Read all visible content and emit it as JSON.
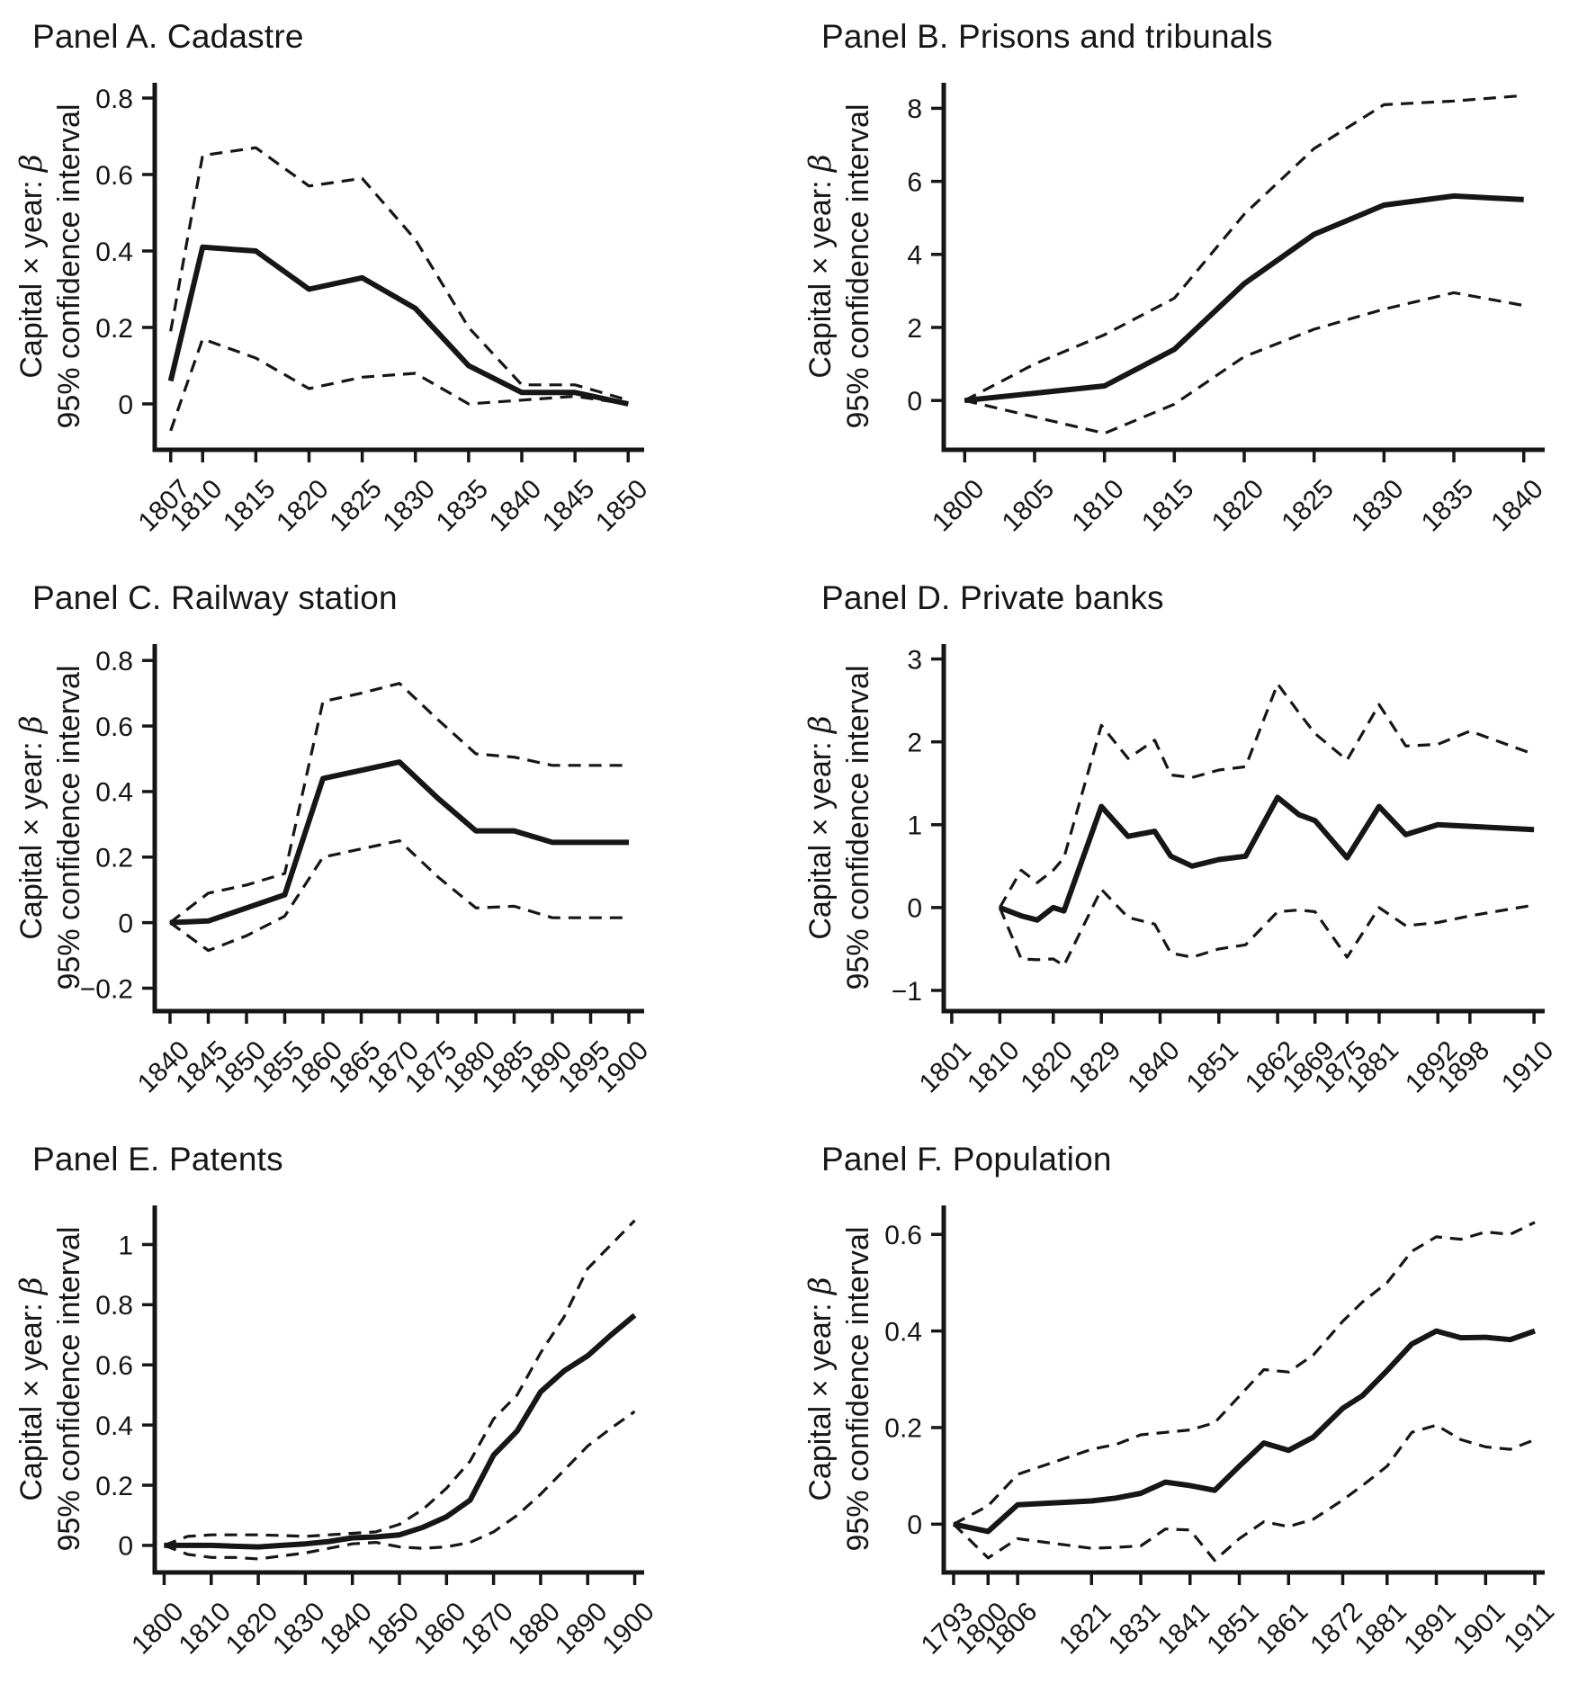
{
  "figure": {
    "background": "#ffffff",
    "line_color": "#161616",
    "n_panels": 6
  },
  "chart_data": [
    {
      "id": "panel-a",
      "type": "line",
      "title": "Panel A. Cadastre",
      "ylabel_line1": "Capital × year: β",
      "ylabel_line2": "95% confidence interval",
      "x": [
        1807,
        1810,
        1815,
        1820,
        1825,
        1830,
        1835,
        1840,
        1845,
        1850
      ],
      "series": [
        {
          "name": "beta_estimate",
          "style": "solid",
          "values": [
            0.06,
            0.41,
            0.4,
            0.3,
            0.33,
            0.25,
            0.1,
            0.03,
            0.03,
            0.0
          ]
        },
        {
          "name": "ci_upper_95",
          "style": "dashed",
          "values": [
            0.19,
            0.65,
            0.67,
            0.57,
            0.59,
            0.43,
            0.2,
            0.05,
            0.05,
            0.01
          ]
        },
        {
          "name": "ci_lower_95",
          "style": "dashed",
          "values": [
            -0.07,
            0.17,
            0.12,
            0.04,
            0.07,
            0.08,
            0.0,
            0.01,
            0.02,
            0.0
          ]
        }
      ],
      "xtick_values": [
        1807,
        1810,
        1815,
        1820,
        1825,
        1830,
        1835,
        1840,
        1845,
        1850
      ],
      "xtick_labels": [
        "1807",
        "1810",
        "1815",
        "1820",
        "1825",
        "1830",
        "1835",
        "1840",
        "1845",
        "1850"
      ],
      "ytick_values": [
        0,
        0.2,
        0.4,
        0.6,
        0.8
      ],
      "ytick_labels": [
        "0",
        "0.2",
        "0.4",
        "0.6",
        "0.8"
      ],
      "xlim": [
        1805.5,
        1851.5
      ],
      "ylim": [
        -0.12,
        0.84
      ],
      "grid": false,
      "legend": "none"
    },
    {
      "id": "panel-b",
      "type": "line",
      "title": "Panel B. Prisons and tribunals",
      "ylabel_line1": "Capital × year: β",
      "ylabel_line2": "95% confidence interval",
      "x": [
        1800,
        1805,
        1810,
        1815,
        1820,
        1825,
        1830,
        1835,
        1840
      ],
      "series": [
        {
          "name": "beta_estimate",
          "style": "solid",
          "values": [
            0,
            0.2,
            0.4,
            1.4,
            3.2,
            4.55,
            5.35,
            5.6,
            5.5
          ]
        },
        {
          "name": "ci_upper_95",
          "style": "dashed",
          "values": [
            0,
            1.0,
            1.8,
            2.8,
            5.1,
            6.9,
            8.1,
            8.2,
            8.35
          ]
        },
        {
          "name": "ci_lower_95",
          "style": "dashed",
          "values": [
            0,
            -0.45,
            -0.9,
            -0.1,
            1.2,
            1.95,
            2.5,
            2.95,
            2.6
          ]
        }
      ],
      "xtick_values": [
        1800,
        1805,
        1810,
        1815,
        1820,
        1825,
        1830,
        1835,
        1840
      ],
      "xtick_labels": [
        "1800",
        "1805",
        "1810",
        "1815",
        "1820",
        "1825",
        "1830",
        "1835",
        "1840"
      ],
      "ytick_values": [
        0,
        2,
        4,
        6,
        8
      ],
      "ytick_labels": [
        "0",
        "2",
        "4",
        "6",
        "8"
      ],
      "xlim": [
        1798.5,
        1841.5
      ],
      "ylim": [
        -1.35,
        8.7
      ],
      "grid": false,
      "legend": "none"
    },
    {
      "id": "panel-c",
      "type": "line",
      "title": "Panel C. Railway station",
      "ylabel_line1": "Capital × year: β",
      "ylabel_line2": "95% confidence interval",
      "x": [
        1840,
        1845,
        1850,
        1855,
        1860,
        1865,
        1870,
        1875,
        1880,
        1885,
        1890,
        1895,
        1900
      ],
      "series": [
        {
          "name": "beta_estimate",
          "style": "solid",
          "values": [
            0,
            0.005,
            0.045,
            0.085,
            0.44,
            0.465,
            0.49,
            0.38,
            0.28,
            0.28,
            0.245,
            0.245,
            0.245
          ]
        },
        {
          "name": "ci_upper_95",
          "style": "dashed",
          "values": [
            0,
            0.09,
            0.115,
            0.15,
            0.675,
            0.7,
            0.73,
            0.62,
            0.515,
            0.505,
            0.48,
            0.48,
            0.48
          ]
        },
        {
          "name": "ci_lower_95",
          "style": "dashed",
          "values": [
            0,
            -0.085,
            -0.04,
            0.02,
            0.2,
            0.225,
            0.25,
            0.14,
            0.045,
            0.05,
            0.015,
            0.015,
            0.015
          ]
        }
      ],
      "xtick_values": [
        1840,
        1845,
        1850,
        1855,
        1860,
        1865,
        1870,
        1875,
        1880,
        1885,
        1890,
        1895,
        1900
      ],
      "xtick_labels": [
        "1840",
        "1845",
        "1850",
        "1855",
        "1860",
        "1865",
        "1870",
        "1875",
        "1880",
        "1885",
        "1890",
        "1895",
        "1900"
      ],
      "ytick_values": [
        -0.2,
        0,
        0.2,
        0.4,
        0.6,
        0.8
      ],
      "ytick_labels": [
        "−0.2",
        "0",
        "0.2",
        "0.4",
        "0.6",
        "0.8"
      ],
      "xlim": [
        1838,
        1902
      ],
      "ylim": [
        -0.27,
        0.85
      ],
      "grid": false,
      "legend": "none"
    },
    {
      "id": "panel-d",
      "type": "line",
      "title": "Panel D. Private banks",
      "ylabel_line1": "Capital × year: β",
      "ylabel_line2": "95% confidence interval",
      "x": [
        1810,
        1814,
        1817,
        1820,
        1822,
        1829,
        1834,
        1839,
        1842,
        1846,
        1851,
        1856,
        1862,
        1866,
        1869,
        1875,
        1881,
        1886,
        1892,
        1898,
        1910
      ],
      "series": [
        {
          "name": "beta_estimate",
          "style": "solid",
          "values": [
            0.0,
            -0.1,
            -0.15,
            0.0,
            -0.04,
            1.22,
            0.86,
            0.92,
            0.62,
            0.5,
            0.58,
            0.62,
            1.33,
            1.12,
            1.05,
            0.6,
            1.22,
            0.88,
            1.0,
            0.98,
            0.94
          ]
        },
        {
          "name": "ci_upper_95",
          "style": "dashed",
          "values": [
            0.0,
            0.45,
            0.3,
            0.45,
            0.6,
            2.2,
            1.8,
            2.02,
            1.6,
            1.57,
            1.66,
            1.7,
            2.7,
            2.35,
            2.1,
            1.78,
            2.45,
            1.95,
            1.97,
            2.13,
            1.85
          ]
        },
        {
          "name": "ci_lower_95",
          "style": "dashed",
          "values": [
            0.0,
            -0.62,
            -0.63,
            -0.62,
            -0.7,
            0.22,
            -0.12,
            -0.2,
            -0.55,
            -0.6,
            -0.5,
            -0.45,
            -0.05,
            -0.03,
            -0.05,
            -0.6,
            0.0,
            -0.22,
            -0.18,
            -0.1,
            0.03
          ]
        }
      ],
      "xtick_values": [
        1801,
        1810,
        1820,
        1829,
        1840,
        1851,
        1862,
        1869,
        1875,
        1881,
        1892,
        1898,
        1910
      ],
      "xtick_labels": [
        "1801",
        "1810",
        "1820",
        "1829",
        "1840",
        "1851",
        "1862",
        "1869",
        "1875",
        "1881",
        "1892",
        "1898",
        "1910"
      ],
      "ytick_values": [
        -1,
        0,
        1,
        2,
        3
      ],
      "ytick_labels": [
        "−1",
        "0",
        "1",
        "2",
        "3"
      ],
      "xlim": [
        1799.5,
        1912
      ],
      "ylim": [
        -1.25,
        3.18
      ],
      "grid": false,
      "legend": "none"
    },
    {
      "id": "panel-e",
      "type": "line",
      "title": "Panel E. Patents",
      "ylabel_line1": "Capital × year: β",
      "ylabel_line2": "95% confidence interval",
      "x": [
        1800,
        1805,
        1810,
        1815,
        1820,
        1825,
        1830,
        1835,
        1840,
        1845,
        1850,
        1855,
        1860,
        1865,
        1870,
        1875,
        1880,
        1885,
        1890,
        1895,
        1900
      ],
      "series": [
        {
          "name": "beta_estimate",
          "style": "solid",
          "values": [
            0,
            0,
            0,
            -0.003,
            -0.005,
            0,
            0.005,
            0.013,
            0.025,
            0.028,
            0.035,
            0.06,
            0.095,
            0.15,
            0.3,
            0.38,
            0.51,
            0.58,
            0.63,
            0.7,
            0.765
          ]
        },
        {
          "name": "ci_upper_95",
          "style": "dashed",
          "values": [
            0,
            0.03,
            0.035,
            0.035,
            0.035,
            0.033,
            0.03,
            0.035,
            0.04,
            0.045,
            0.07,
            0.12,
            0.19,
            0.28,
            0.42,
            0.5,
            0.64,
            0.76,
            0.92,
            1.0,
            1.08
          ]
        },
        {
          "name": "ci_lower_95",
          "style": "dashed",
          "values": [
            0,
            -0.03,
            -0.04,
            -0.04,
            -0.045,
            -0.035,
            -0.025,
            -0.01,
            0.005,
            0.01,
            -0.005,
            -0.01,
            -0.005,
            0.01,
            0.045,
            0.1,
            0.17,
            0.25,
            0.33,
            0.39,
            0.445
          ]
        }
      ],
      "xtick_values": [
        1800,
        1810,
        1820,
        1830,
        1840,
        1850,
        1860,
        1870,
        1880,
        1890,
        1900
      ],
      "xtick_labels": [
        "1800",
        "1810",
        "1820",
        "1830",
        "1840",
        "1850",
        "1860",
        "1870",
        "1880",
        "1890",
        "1900"
      ],
      "ytick_values": [
        0,
        0.2,
        0.4,
        0.6,
        0.8,
        1
      ],
      "ytick_labels": [
        "0",
        "0.2",
        "0.4",
        "0.6",
        "0.8",
        "1"
      ],
      "xlim": [
        1798,
        1902
      ],
      "ylim": [
        -0.09,
        1.13
      ],
      "grid": false,
      "legend": "none"
    },
    {
      "id": "panel-f",
      "type": "line",
      "title": "Panel F. Population",
      "ylabel_line1": "Capital × year: β",
      "ylabel_line2": "95% confidence interval",
      "x": [
        1793,
        1800,
        1806,
        1821,
        1826,
        1831,
        1836,
        1841,
        1846,
        1851,
        1856,
        1861,
        1866,
        1872,
        1876,
        1881,
        1886,
        1891,
        1896,
        1901,
        1906,
        1911
      ],
      "series": [
        {
          "name": "beta_estimate",
          "style": "solid",
          "values": [
            0,
            -0.015,
            0.04,
            0.048,
            0.054,
            0.064,
            0.087,
            0.08,
            0.07,
            0.12,
            0.168,
            0.153,
            0.18,
            0.24,
            0.266,
            0.318,
            0.373,
            0.4,
            0.386,
            0.387,
            0.382,
            0.4
          ]
        },
        {
          "name": "ci_upper_95",
          "style": "dashed",
          "values": [
            0,
            0.038,
            0.103,
            0.155,
            0.165,
            0.185,
            0.19,
            0.195,
            0.21,
            0.265,
            0.32,
            0.315,
            0.35,
            0.42,
            0.46,
            0.5,
            0.565,
            0.595,
            0.59,
            0.605,
            0.6,
            0.625
          ]
        },
        {
          "name": "ci_lower_95",
          "style": "dashed",
          "values": [
            0,
            -0.07,
            -0.03,
            -0.05,
            -0.048,
            -0.045,
            -0.01,
            -0.012,
            -0.075,
            -0.03,
            0.005,
            -0.005,
            0.01,
            0.05,
            0.08,
            0.12,
            0.19,
            0.205,
            0.175,
            0.16,
            0.155,
            0.175
          ]
        }
      ],
      "xtick_values": [
        1793,
        1800,
        1806,
        1821,
        1831,
        1841,
        1851,
        1861,
        1872,
        1881,
        1891,
        1901,
        1911
      ],
      "xtick_labels": [
        "1793",
        "1800",
        "1806",
        "1821",
        "1831",
        "1841",
        "1851",
        "1861",
        "1872",
        "1881",
        "1891",
        "1901",
        "1911"
      ],
      "ytick_values": [
        0,
        0.2,
        0.4,
        0.6
      ],
      "ytick_labels": [
        "0",
        "0.2",
        "0.4",
        "0.6"
      ],
      "xlim": [
        1791,
        1913
      ],
      "ylim": [
        -0.1,
        0.66
      ],
      "grid": false,
      "legend": "none"
    }
  ]
}
